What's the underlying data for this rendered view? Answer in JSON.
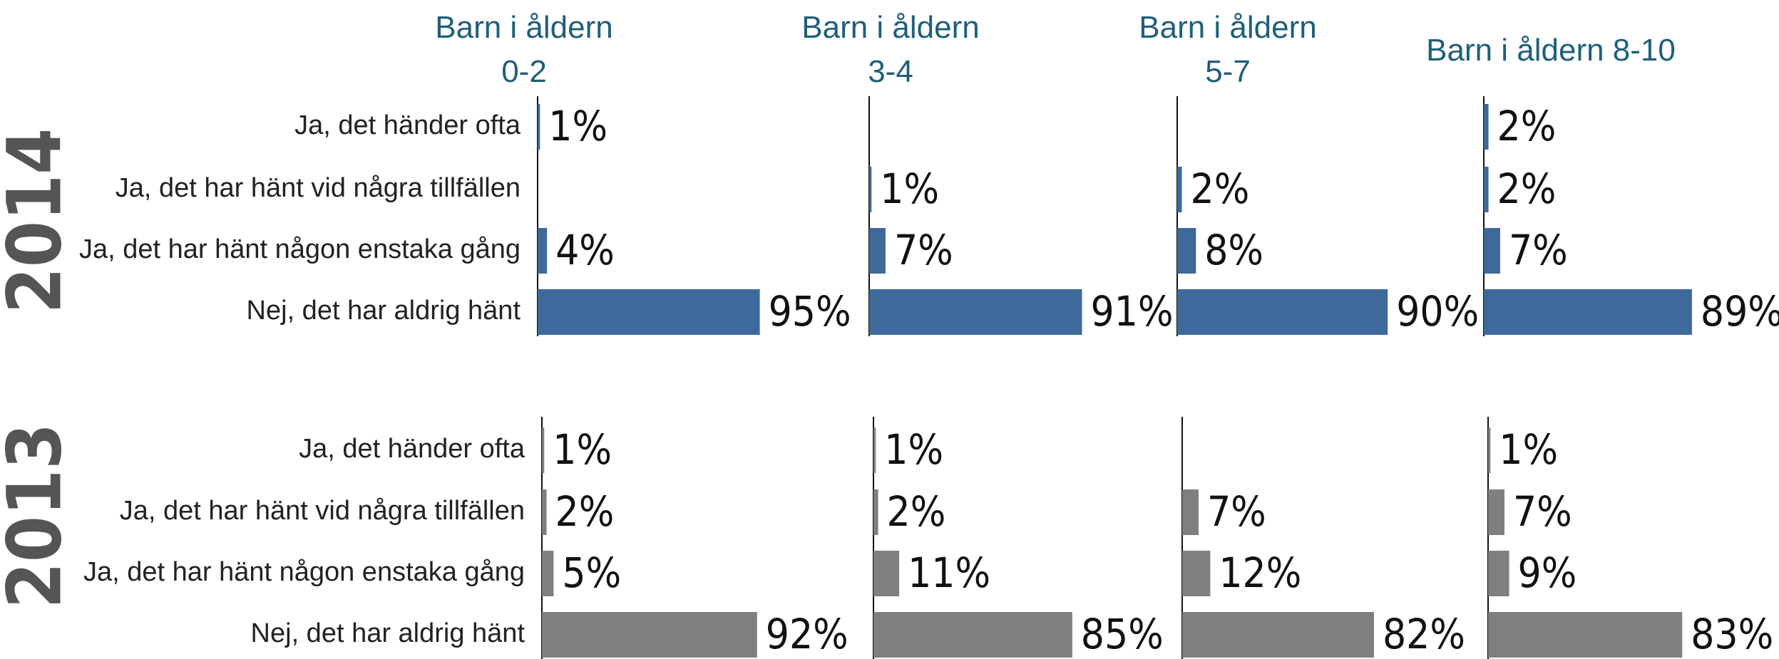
{
  "chart_data": [
    {
      "type": "bar",
      "orientation": "horizontal",
      "title": "Barn i åldern 0-2",
      "row_label": "2014",
      "color": "#3d6a9a",
      "xlim": [
        0,
        100
      ],
      "categories": [
        "Ja, det händer ofta",
        "Ja, det har hänt vid några tillfällen",
        "Ja, det har hänt någon enstaka gång",
        "Nej, det har aldrig hänt"
      ],
      "values": [
        1,
        null,
        4,
        95
      ],
      "value_labels": [
        "1%",
        null,
        "4%",
        "95%"
      ]
    },
    {
      "type": "bar",
      "orientation": "horizontal",
      "title": "Barn i åldern 3-4",
      "color": "#3d6a9a",
      "xlim": [
        0,
        100
      ],
      "values": [
        null,
        1,
        7,
        91
      ],
      "value_labels": [
        null,
        "1%",
        "7%",
        "91%"
      ]
    },
    {
      "type": "bar",
      "orientation": "horizontal",
      "title": "Barn i åldern 5-7",
      "color": "#3d6a9a",
      "xlim": [
        0,
        100
      ],
      "values": [
        null,
        2,
        8,
        90
      ],
      "value_labels": [
        null,
        "2%",
        "8%",
        "90%"
      ]
    },
    {
      "type": "bar",
      "orientation": "horizontal",
      "title": "Barn i åldern 8-10",
      "color": "#3d6a9a",
      "xlim": [
        0,
        100
      ],
      "values": [
        2,
        2,
        7,
        89
      ],
      "value_labels": [
        "2%",
        "2%",
        "7%",
        "89%"
      ]
    },
    {
      "type": "bar",
      "orientation": "horizontal",
      "row_label": "2013",
      "color": "#7f7f7f",
      "xlim": [
        0,
        100
      ],
      "categories": [
        "Ja, det händer ofta",
        "Ja, det har hänt vid några tillfällen",
        "Ja, det har hänt någon enstaka gång",
        "Nej, det har aldrig hänt"
      ],
      "values": [
        1,
        2,
        5,
        92
      ],
      "value_labels": [
        "1%",
        "2%",
        "5%",
        "92%"
      ]
    },
    {
      "type": "bar",
      "orientation": "horizontal",
      "color": "#7f7f7f",
      "xlim": [
        0,
        100
      ],
      "values": [
        1,
        2,
        11,
        85
      ],
      "value_labels": [
        "1%",
        "2%",
        "11%",
        "85%"
      ]
    },
    {
      "type": "bar",
      "orientation": "horizontal",
      "color": "#7f7f7f",
      "xlim": [
        0,
        100
      ],
      "values": [
        null,
        7,
        12,
        82
      ],
      "value_labels": [
        null,
        "7%",
        "12%",
        "82%"
      ]
    },
    {
      "type": "bar",
      "orientation": "horizontal",
      "color": "#7f7f7f",
      "xlim": [
        0,
        100
      ],
      "values": [
        1,
        7,
        9,
        83
      ],
      "value_labels": [
        "1%",
        "7%",
        "9%",
        "83%"
      ]
    }
  ]
}
